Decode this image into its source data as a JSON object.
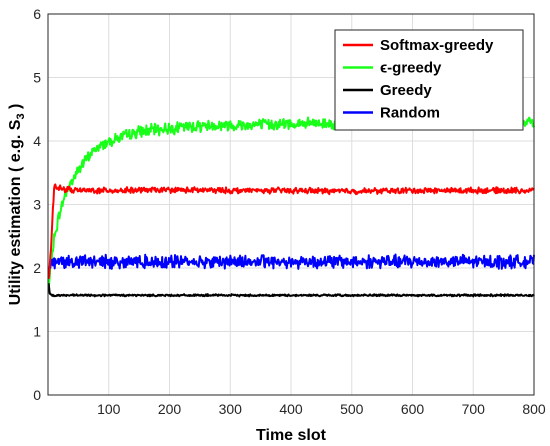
{
  "chart_data": {
    "type": "line",
    "title": "",
    "xlabel": "Time slot",
    "ylabel": "Utility estimation ( e.g. S",
    "ylabel_subscript": "3",
    "ylabel_suffix": " )",
    "xlim": [
      0,
      800
    ],
    "ylim": [
      0,
      6
    ],
    "xticks": [
      100,
      200,
      300,
      400,
      500,
      600,
      700,
      800
    ],
    "yticks": [
      0,
      1,
      2,
      3,
      4,
      5,
      6
    ],
    "grid": true,
    "legend_position": "top-right",
    "series": [
      {
        "name": "Softmax-greedy",
        "color": "#ff0000",
        "x": [
          1,
          5,
          10,
          20,
          50,
          100,
          200,
          300,
          400,
          500,
          600,
          700,
          800
        ],
        "values": [
          1.8,
          2.3,
          3.3,
          3.25,
          3.22,
          3.22,
          3.23,
          3.22,
          3.22,
          3.21,
          3.22,
          3.22,
          3.22
        ],
        "noise": 0.035
      },
      {
        "name": "ϵ-greedy",
        "color": "#1aff1a",
        "x": [
          1,
          5,
          10,
          20,
          30,
          50,
          75,
          100,
          150,
          200,
          250,
          300,
          400,
          500,
          600,
          700,
          800
        ],
        "values": [
          1.6,
          2.1,
          2.45,
          2.9,
          3.2,
          3.55,
          3.85,
          4.0,
          4.15,
          4.2,
          4.24,
          4.25,
          4.27,
          4.28,
          4.3,
          4.3,
          4.3
        ],
        "noise": 0.07
      },
      {
        "name": "Greedy",
        "color": "#000000",
        "x": [
          1,
          3,
          6,
          50,
          200,
          400,
          600,
          800
        ],
        "values": [
          1.75,
          1.6,
          1.57,
          1.57,
          1.57,
          1.57,
          1.57,
          1.57
        ],
        "noise": 0.012
      },
      {
        "name": "Random",
        "color": "#0000ff",
        "x": [
          1,
          5,
          50,
          200,
          400,
          600,
          800
        ],
        "values": [
          1.95,
          2.1,
          2.1,
          2.1,
          2.1,
          2.1,
          2.1
        ],
        "noise": 0.08
      }
    ]
  }
}
